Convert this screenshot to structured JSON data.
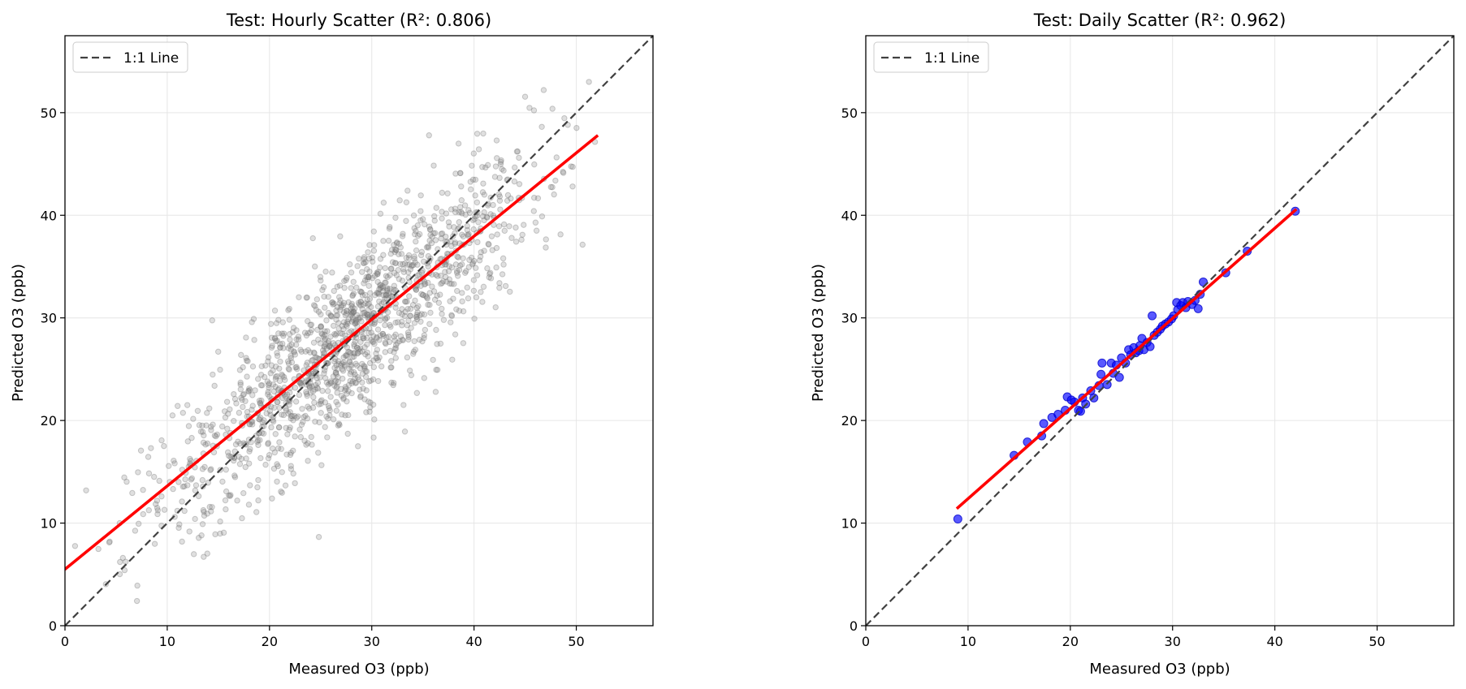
{
  "chart_data": [
    {
      "type": "scatter",
      "title": "Test: Hourly Scatter (R²: 0.806)",
      "xlabel": "Measured O3 (ppb)",
      "ylabel": "Predicted O3 (ppb)",
      "xlim": [
        0,
        57.5
      ],
      "ylim": [
        0,
        57.5
      ],
      "xticks": [
        "0",
        "10",
        "20",
        "30",
        "40",
        "50"
      ],
      "yticks": [
        "0",
        "10",
        "20",
        "30",
        "40",
        "50"
      ],
      "grid": true,
      "legend": {
        "position": "top-left",
        "entries": [
          "1:1 Line"
        ]
      },
      "reference_line": {
        "name": "1:1 Line",
        "x": [
          0,
          57.5
        ],
        "y": [
          0,
          57.5
        ],
        "color": "#404040",
        "style": "dashed"
      },
      "fit_line": {
        "x": [
          0,
          52
        ],
        "y": [
          5.5,
          47.7
        ],
        "color": "#ff0000"
      },
      "point_color": "#808080",
      "point_alpha": 0.25,
      "point_count": 1500,
      "point_distribution": {
        "x_range": [
          0,
          52
        ],
        "mean_x": 28,
        "sd_x": 9,
        "slope": 0.81,
        "intercept": 5.5,
        "sd_residual": 4.2
      }
    },
    {
      "type": "scatter",
      "title": "Test: Daily Scatter (R²: 0.962)",
      "xlabel": "Measured O3 (ppb)",
      "ylabel": "Predicted O3 (ppb)",
      "xlim": [
        0,
        57.5
      ],
      "ylim": [
        0,
        57.5
      ],
      "xticks": [
        "0",
        "10",
        "20",
        "30",
        "40",
        "50"
      ],
      "yticks": [
        "0",
        "10",
        "20",
        "30",
        "40",
        "50"
      ],
      "grid": true,
      "legend": {
        "position": "top-left",
        "entries": [
          "1:1 Line"
        ]
      },
      "reference_line": {
        "name": "1:1 Line",
        "x": [
          0,
          57.5
        ],
        "y": [
          0,
          57.5
        ],
        "color": "#404040",
        "style": "dashed"
      },
      "fit_line": {
        "x": [
          9,
          42
        ],
        "y": [
          11.5,
          40.5
        ],
        "color": "#ff0000"
      },
      "point_color": "#0000ff",
      "point_alpha": 0.65,
      "points": [
        [
          9.0,
          10.4
        ],
        [
          14.5,
          16.6
        ],
        [
          15.8,
          17.9
        ],
        [
          17.2,
          18.5
        ],
        [
          17.4,
          19.7
        ],
        [
          18.2,
          20.3
        ],
        [
          18.8,
          20.6
        ],
        [
          19.5,
          21.0
        ],
        [
          19.7,
          22.3
        ],
        [
          20.1,
          22.0
        ],
        [
          20.4,
          21.8
        ],
        [
          20.8,
          21.0
        ],
        [
          21.0,
          20.9
        ],
        [
          21.2,
          22.2
        ],
        [
          21.5,
          21.6
        ],
        [
          22.0,
          22.9
        ],
        [
          22.3,
          22.2
        ],
        [
          22.8,
          23.4
        ],
        [
          23.0,
          24.5
        ],
        [
          23.1,
          25.6
        ],
        [
          23.6,
          23.5
        ],
        [
          24.0,
          25.6
        ],
        [
          24.2,
          24.6
        ],
        [
          24.5,
          25.4
        ],
        [
          24.8,
          24.2
        ],
        [
          25.0,
          26.1
        ],
        [
          25.4,
          25.6
        ],
        [
          25.7,
          26.9
        ],
        [
          25.9,
          26.4
        ],
        [
          26.2,
          27.1
        ],
        [
          26.4,
          26.6
        ],
        [
          26.7,
          26.8
        ],
        [
          26.8,
          27.3
        ],
        [
          27.0,
          28.0
        ],
        [
          27.2,
          26.9
        ],
        [
          27.5,
          27.6
        ],
        [
          27.8,
          27.2
        ],
        [
          28.0,
          30.2
        ],
        [
          28.2,
          28.3
        ],
        [
          28.5,
          28.6
        ],
        [
          28.8,
          28.9
        ],
        [
          29.0,
          29.2
        ],
        [
          29.3,
          29.4
        ],
        [
          29.6,
          29.6
        ],
        [
          29.9,
          29.9
        ],
        [
          30.1,
          30.2
        ],
        [
          30.4,
          31.5
        ],
        [
          30.5,
          30.8
        ],
        [
          30.8,
          31.2
        ],
        [
          31.0,
          31.5
        ],
        [
          31.3,
          31.0
        ],
        [
          31.5,
          31.6
        ],
        [
          31.9,
          31.3
        ],
        [
          32.2,
          31.7
        ],
        [
          32.5,
          30.9
        ],
        [
          32.7,
          32.3
        ],
        [
          33.0,
          33.5
        ],
        [
          35.2,
          34.4
        ],
        [
          37.3,
          36.5
        ],
        [
          42.0,
          40.4
        ]
      ]
    }
  ]
}
